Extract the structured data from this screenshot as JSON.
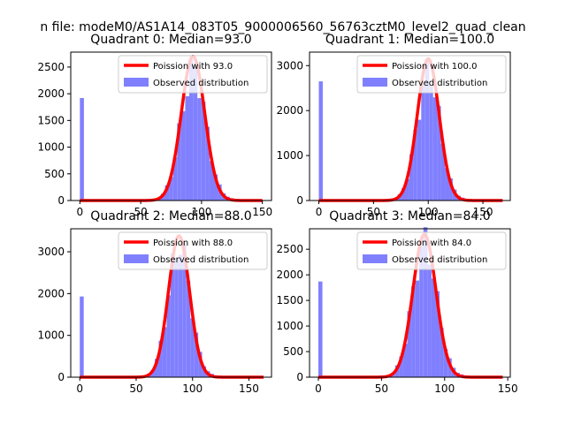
{
  "figure": {
    "suptitle": "n file: modeM0/AS1A14_083T05_9000006560_56763cztM0_level2_quad_clean"
  },
  "colors": {
    "histogram": "#8080ff",
    "poisson": "#ff0000",
    "axes": "#000000"
  },
  "chart_data": [
    {
      "type": "bar",
      "title": "Quadrant 0: Median=93.0",
      "median": 93.0,
      "xlim": [
        -7.5,
        157.5
      ],
      "ylim": [
        0,
        2780
      ],
      "xticks": [
        0,
        50,
        100,
        150
      ],
      "yticks": [
        0,
        500,
        1000,
        1500,
        2000,
        2500
      ],
      "bin_width": 3.33,
      "zero_bin_value": 1920,
      "observed_peak": 2600,
      "hist_x_range": [
        0,
        150
      ],
      "poisson_peak": 2700,
      "legend": [
        "Poission with 93.0",
        "Observed distribution"
      ]
    },
    {
      "type": "bar",
      "title": "Quadrant 1: Median=100.0",
      "median": 100.0,
      "xlim": [
        -8.5,
        175
      ],
      "ylim": [
        0,
        3300
      ],
      "xticks": [
        0,
        50,
        100,
        150
      ],
      "yticks": [
        0,
        1000,
        2000,
        3000
      ],
      "bin_width": 3.6,
      "zero_bin_value": 2650,
      "observed_peak": 3000,
      "hist_x_range": [
        0,
        168
      ],
      "poisson_peak": 3150,
      "legend": [
        "Poission with 100.0",
        "Observed distribution"
      ]
    },
    {
      "type": "bar",
      "title": "Quadrant 2: Median=88.0",
      "median": 88.0,
      "xlim": [
        -8,
        170
      ],
      "ylim": [
        0,
        3550
      ],
      "xticks": [
        0,
        50,
        100,
        150
      ],
      "yticks": [
        0,
        1000,
        2000,
        3000
      ],
      "bin_width": 3.5,
      "zero_bin_value": 1930,
      "observed_peak": 3350,
      "hist_x_range": [
        0,
        163
      ],
      "poisson_peak": 3380,
      "legend": [
        "Poission with 88.0",
        "Observed distribution"
      ]
    },
    {
      "type": "bar",
      "title": "Quadrant 3: Median=84.0",
      "median": 84.0,
      "xlim": [
        -7,
        152
      ],
      "ylim": [
        0,
        2900
      ],
      "xticks": [
        0,
        50,
        100,
        150
      ],
      "yticks": [
        0,
        500,
        1000,
        1500,
        2000,
        2500
      ],
      "bin_width": 3.2,
      "zero_bin_value": 1870,
      "observed_peak": 2760,
      "hist_x_range": [
        0,
        146
      ],
      "poisson_peak": 2790,
      "legend": [
        "Poission with 84.0",
        "Observed distribution"
      ]
    }
  ]
}
